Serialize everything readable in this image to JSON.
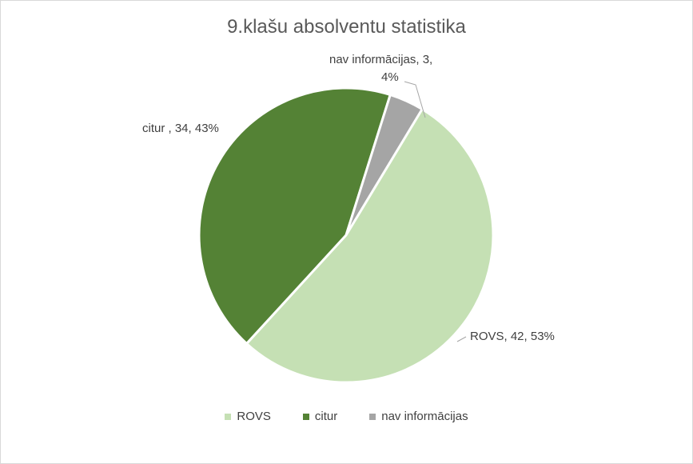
{
  "chart_data": {
    "type": "pie",
    "title": "9.klašu absolventu statistika",
    "slices": [
      {
        "name": "ROVS",
        "value": 42,
        "percent": 53,
        "color": "#c5e0b4",
        "label": "ROVS, 42, 53%"
      },
      {
        "name": "citur",
        "value": 34,
        "percent": 43,
        "color": "#548235",
        "label": "citur , 34, 43%"
      },
      {
        "name": "nav informācijas",
        "value": 3,
        "percent": 4,
        "color": "#a5a5a5",
        "label_line1": "nav informācijas, 3,",
        "label_line2": "4%"
      }
    ],
    "legend": [
      "ROVS",
      "citur",
      "nav informācijas"
    ],
    "legend_position": "bottom"
  }
}
